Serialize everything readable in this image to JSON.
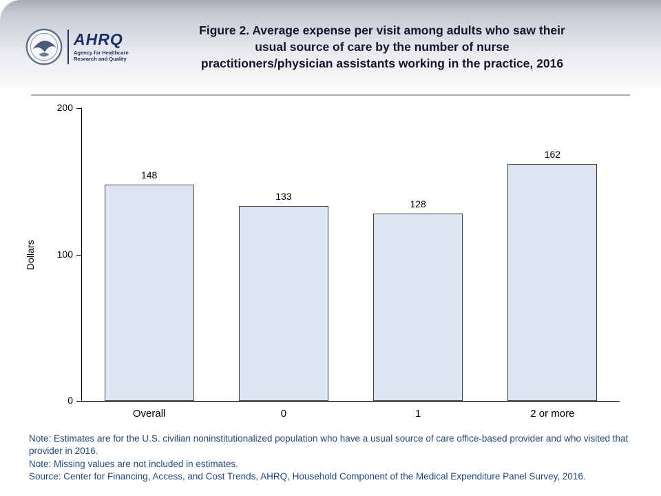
{
  "header": {
    "title_lines": [
      "Figure 2. Average expense per visit among adults who saw their",
      "usual source of care by the number of nurse",
      "practitioners/physician assistants working in the practice, 2016"
    ],
    "logo": {
      "name": "AHRQ",
      "tagline_line1": "Agency for Healthcare",
      "tagline_line2": "Research and Quality"
    }
  },
  "chart_data": {
    "type": "bar",
    "categories": [
      "Overall",
      "0",
      "1",
      "2 or more"
    ],
    "values": [
      148,
      133,
      128,
      162
    ],
    "title": "Figure 2. Average expense per visit among adults who saw their usual source of care by the number of nurse practitioners/physician assistants working in the practice, 2016",
    "xlabel": "",
    "ylabel": "Dollars",
    "ylim": [
      0,
      200
    ],
    "yticks": [
      0,
      100,
      200
    ],
    "grid": false,
    "legend": "none",
    "bar_fill": "#dce6f2",
    "bar_border": "#404040"
  },
  "notes": [
    "Note: Estimates are for the U.S. civilian noninstitutionalized population who have a usual source of care office-based provider and who visited that provider in 2016.",
    "Note: Missing values are not included in estimates.",
    "Source: Center for Financing, Access, and Cost Trends, AHRQ, Household Component of the Medical Expenditure Panel Survey, 2016."
  ],
  "colors": {
    "notes_text": "#1f497d",
    "title_text": "#15152c",
    "header_gradient_top": "#a6abb6"
  }
}
